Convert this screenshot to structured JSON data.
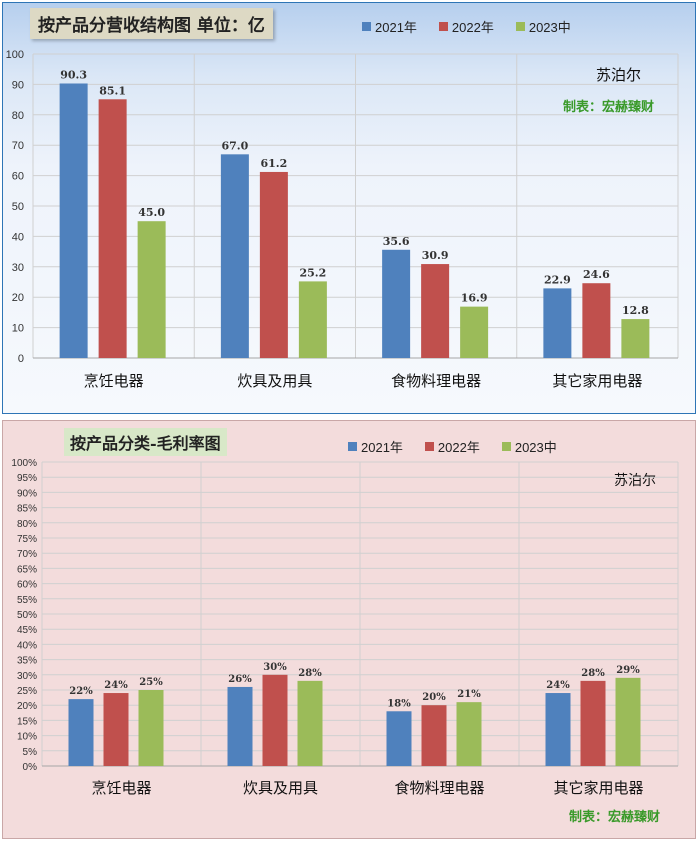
{
  "colors": {
    "s2021": "#4f81bd",
    "s2022": "#c0504d",
    "s2023": "#9bbb59",
    "credit": "#3a9a2a"
  },
  "chart_data": [
    {
      "type": "bar",
      "title": "按产品分营收结构图 单位：亿",
      "categories": [
        "烹饪电器",
        "炊具及用具",
        "食物料理电器",
        "其它家用电器"
      ],
      "series": [
        {
          "name": "2021年",
          "values": [
            90.3,
            67.0,
            35.6,
            22.9
          ],
          "labels": [
            "90.3",
            "67.0",
            "35.6",
            "22.9"
          ]
        },
        {
          "name": "2022年",
          "values": [
            85.1,
            61.2,
            30.9,
            24.6
          ],
          "labels": [
            "85.1",
            "61.2",
            "30.9",
            "24.6"
          ]
        },
        {
          "name": "2023中",
          "values": [
            45.0,
            25.2,
            16.9,
            12.8
          ],
          "labels": [
            "45.0",
            "25.2",
            "16.9",
            "12.8"
          ]
        }
      ],
      "ylim": [
        0,
        100
      ],
      "yticks": [
        "0",
        "10",
        "20",
        "30",
        "40",
        "50",
        "60",
        "70",
        "80",
        "90",
        "100"
      ],
      "grid": true,
      "legend": "top",
      "brand": "苏泊尔",
      "credit": "制表：宏赫臻财"
    },
    {
      "type": "bar",
      "title": "按产品分类-毛利率图",
      "categories": [
        "烹饪电器",
        "炊具及用具",
        "食物料理电器",
        "其它家用电器"
      ],
      "series": [
        {
          "name": "2021年",
          "values": [
            22,
            26,
            18,
            24
          ],
          "labels": [
            "22%",
            "26%",
            "18%",
            "24%"
          ]
        },
        {
          "name": "2022年",
          "values": [
            24,
            30,
            20,
            28
          ],
          "labels": [
            "24%",
            "30%",
            "20%",
            "28%"
          ]
        },
        {
          "name": "2023中",
          "values": [
            25,
            28,
            21,
            29
          ],
          "labels": [
            "25%",
            "28%",
            "21%",
            "29%"
          ]
        }
      ],
      "ylim": [
        0,
        100
      ],
      "yticks": [
        "0%",
        "5%",
        "10%",
        "15%",
        "20%",
        "25%",
        "30%",
        "35%",
        "40%",
        "45%",
        "50%",
        "55%",
        "60%",
        "65%",
        "70%",
        "75%",
        "80%",
        "85%",
        "90%",
        "95%",
        "100%"
      ],
      "grid": true,
      "legend": "top",
      "brand": "苏泊尔",
      "credit": "制表：宏赫臻财"
    }
  ]
}
